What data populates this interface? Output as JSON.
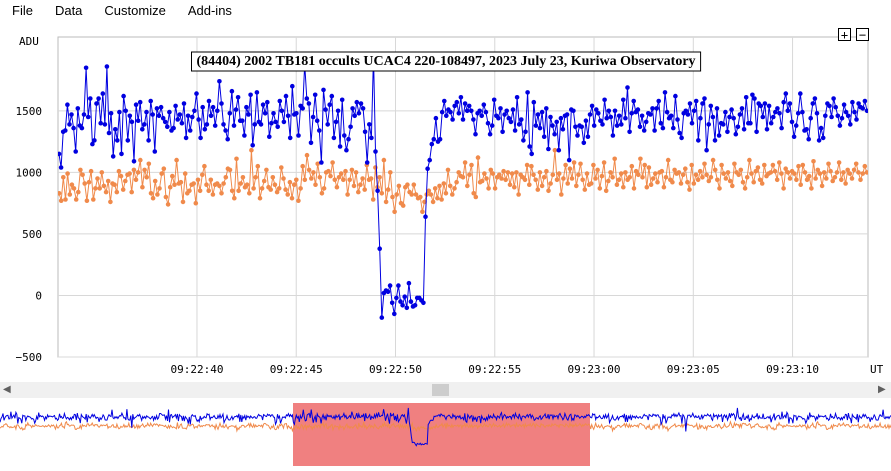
{
  "menu": {
    "items": [
      {
        "label": "File"
      },
      {
        "label": "Data"
      },
      {
        "label": "Customize"
      },
      {
        "label": "Add-ins"
      }
    ]
  },
  "zoom": {
    "in_label": "+",
    "out_label": "−"
  },
  "chart_data": {
    "type": "line",
    "title": "(84404) 2002 TB181 occults UCAC4 220-108497, 2023 July 23, Kuriwa Observatory",
    "ylabel": "ADU",
    "xlabel": "UT",
    "ylim": [
      -500,
      2100
    ],
    "yticks": [
      -500,
      0,
      500,
      1000,
      1500
    ],
    "xlim": [
      0,
      40.8
    ],
    "xticks": [
      {
        "x": 7.0,
        "label": "09:22:40"
      },
      {
        "x": 12.0,
        "label": "09:22:45"
      },
      {
        "x": 17.0,
        "label": "09:22:50"
      },
      {
        "x": 22.0,
        "label": "09:22:55"
      },
      {
        "x": 27.0,
        "label": "09:23:00"
      },
      {
        "x": 32.0,
        "label": "09:23:05"
      },
      {
        "x": 37.0,
        "label": "09:23:10"
      }
    ],
    "grid": true,
    "series": [
      {
        "name": "",
        "color": "#0000e0",
        "values": [
          1150,
          1040,
          1330,
          1340,
          1550,
          1390,
          1470,
          1360,
          1170,
          1520,
          1380,
          1360,
          1470,
          1850,
          1450,
          1600,
          1230,
          1260,
          1560,
          1600,
          1400,
          1640,
          1390,
          1860,
          1320,
          1480,
          1130,
          1350,
          1260,
          1490,
          1150,
          1620,
          1500,
          1260,
          1460,
          1410,
          1090,
          1550,
          1420,
          1570,
          1350,
          1390,
          1490,
          1260,
          1580,
          1470,
          1170,
          1520,
          1460,
          1530,
          1440,
          1410,
          1370,
          1490,
          1340,
          1360,
          1540,
          1430,
          1470,
          1400,
          1560,
          1280,
          1460,
          1340,
          1450,
          1500,
          1640,
          1430,
          1280,
          1530,
          1350,
          1390,
          1580,
          1460,
          1530,
          1380,
          1500,
          1740,
          1560,
          1390,
          1340,
          1270,
          1480,
          1660,
          1380,
          1510,
          1610,
          1420,
          1420,
          1300,
          1530,
          1470,
          1630,
          1220,
          1390,
          1650,
          1410,
          1390,
          1550,
          1480,
          1570,
          1290,
          1400,
          1480,
          1410,
          1370,
          1580,
          1500,
          1410,
          1620,
          1460,
          1280,
          1700,
          1470,
          1480,
          1300,
          1540,
          1520,
          1880,
          1600,
          1560,
          1240,
          1450,
          1630,
          1420,
          1340,
          1080,
          1670,
          1510,
          1390,
          1550,
          1620,
          1280,
          1410,
          1500,
          1210,
          1590,
          1300,
          1180,
          1270,
          1370,
          1520,
          1460,
          1570,
          1480,
          1560,
          1520,
          1330,
          1080,
          1390,
          1280,
          1950,
          1170,
          850,
          380,
          -180,
          20,
          40,
          30,
          80,
          -60,
          -150,
          -20,
          80,
          -50,
          -80,
          -10,
          -100,
          100,
          -50,
          -90,
          -80,
          -20,
          -20,
          -40,
          -60,
          640,
          1030,
          1100,
          1230,
          1270,
          1440,
          1250,
          1270,
          1490,
          1580,
          1460,
          1510,
          1490,
          1430,
          1540,
          1570,
          1480,
          1610,
          1430,
          1560,
          1500,
          1540,
          1500,
          1430,
          1310,
          1480,
          1500,
          1460,
          1550,
          1490,
          1400,
          1310,
          1380,
          1590,
          1460,
          1440,
          1520,
          1330,
          1470,
          1500,
          1440,
          1410,
          1510,
          1340,
          1610,
          1390,
          1430,
          1260,
          1330,
          1650,
          1210,
          1150,
          1570,
          1380,
          1470,
          1360,
          1490,
          1290,
          1520,
          1190,
          1450,
          1380,
          1310,
          1410,
          1180,
          1440,
          1350,
          1460,
          1470,
          1100,
          1510,
          1500,
          1370,
          1300,
          1380,
          1370,
          1240,
          1420,
          1290,
          1470,
          1540,
          1380,
          1510,
          1480,
          1420,
          1390,
          1590,
          1440,
          1500,
          1450,
          1300,
          1500,
          1380,
          1460,
          1390,
          1590,
          1440,
          1690,
          1330,
          1480,
          1580,
          1490,
          1510,
          1370,
          1460,
          1340,
          1410,
          1480,
          1470,
          1520,
          1340,
          1520,
          1580,
          1400,
          1360,
          1650,
          1490,
          1440,
          1460,
          1360,
          1620,
          1430,
          1320,
          1280,
          1480,
          1500,
          1470,
          1560,
          1400,
          1500,
          1580,
          1260,
          1440,
          1560,
          1600,
          1180,
          1390,
          1540,
          1450,
          1260,
          1520,
          1300,
          1400,
          1390,
          1490,
          1330,
          1450,
          1510,
          1440,
          1310,
          1370,
          1470,
          1520,
          1350,
          1610,
          1400,
          1400,
          1630,
          1600,
          1330,
          1560,
          1540,
          1450,
          1560,
          1350,
          1540,
          1400,
          1450,
          1490,
          1520,
          1480,
          1360,
          1570,
          1640,
          1500,
          1560,
          1410,
          1290,
          1380,
          1480,
          1640,
          1490,
          1340,
          1350,
          1270,
          1440,
          1560,
          1600,
          1480,
          1260,
          1360,
          1280,
          1460,
          1560,
          1540,
          1450,
          1600,
          1530,
          1460,
          1380,
          1440,
          1550,
          1490,
          1460,
          1390,
          1570,
          1490,
          1430,
          1560,
          1530,
          1520,
          1580,
          1500
        ]
      },
      {
        "name": "",
        "color": "#f08a4b",
        "values": [
          830,
          770,
          960,
          780,
          990,
          820,
          900,
          870,
          780,
          840,
          1020,
          980,
          910,
          770,
          920,
          1010,
          780,
          870,
          950,
          870,
          1000,
          890,
          840,
          930,
          760,
          910,
          900,
          840,
          1010,
          970,
          860,
          930,
          980,
          990,
          840,
          1020,
          940,
          1000,
          1100,
          880,
          1020,
          960,
          1070,
          830,
          790,
          930,
          820,
          870,
          990,
          1030,
          800,
          740,
          880,
          970,
          900,
          1100,
          910,
          920,
          760,
          990,
          830,
          850,
          900,
          910,
          750,
          940,
          850,
          980,
          1050,
          900,
          850,
          940,
          820,
          900,
          910,
          890,
          830,
          910,
          960,
          1030,
          1020,
          850,
          790,
          1110,
          850,
          910,
          960,
          880,
          900,
          830,
          1180,
          870,
          960,
          1050,
          790,
          870,
          930,
          1020,
          880,
          860,
          960,
          900,
          840,
          870,
          1040,
          950,
          860,
          820,
          920,
          790,
          900,
          940,
          770,
          870,
          1050,
          940,
          1140,
          1020,
          950,
          1000,
          900,
          1070,
          960,
          830,
          870,
          1000,
          1010,
          970,
          1080,
          940,
          880,
          960,
          990,
          940,
          1010,
          820,
          940,
          1020,
          890,
          1000,
          840,
          900,
          950,
          860,
          1060,
          940,
          950,
          780,
          1040,
          880,
          960,
          830,
          1100,
          760,
          860,
          1000,
          800,
          680,
          820,
          890,
          750,
          730,
          880,
          900,
          840,
          820,
          900,
          820,
          790,
          800,
          680,
          760,
          820,
          850,
          820,
          760,
          870,
          790,
          890,
          780,
          910,
          830,
          1020,
          890,
          820,
          870,
          920,
          1000,
          970,
          960,
          1080,
          890,
          980,
          1060,
          830,
          800,
          1120,
          920,
          930,
          990,
          950,
          870,
          1020,
          990,
          870,
          960,
          980,
          950,
          1010,
          940,
          1000,
          900,
          990,
          880,
          1000,
          820,
          980,
          960,
          940,
          1060,
          900,
          1050,
          980,
          940,
          860,
          1000,
          890,
          960,
          1010,
          850,
          910,
          980,
          1180,
          940,
          990,
          820,
          950,
          1060,
          910,
          1030,
          950,
          1080,
          890,
          980,
          1070,
          940,
          860,
          990,
          900,
          910,
          1060,
          950,
          1020,
          870,
          970,
          1080,
          850,
          930,
          1000,
          960,
          1110,
          900,
          940,
          990,
          880,
          1000,
          940,
          960,
          1050,
          870,
          1010,
          980,
          1110,
          960,
          1060,
          880,
          1040,
          900,
          950,
          990,
          920,
          1000,
          1010,
          880,
          960,
          1100,
          940,
          920,
          1020,
          990,
          1000,
          910,
          980,
          1030,
          920,
          860,
          1060,
          910,
          980,
          940,
          1010,
          960,
          1070,
          980,
          930,
          960,
          1100,
          1020,
          940,
          870,
          1060,
          990,
          950,
          1000,
          930,
          890,
          1070,
          1000,
          980,
          1020,
          920,
          870,
          960,
          1100,
          990,
          920,
          1010,
          1040,
          940,
          910,
          1060,
          970,
          990,
          1000,
          1060,
          1010,
          940,
          1080,
          990,
          870,
          1030,
          1000,
          950,
          1010,
          990,
          940,
          1050,
          900,
          1060,
          1000,
          940,
          970,
          870,
          1090,
          950,
          1020,
          990,
          890,
          1000,
          950,
          1070,
          1010,
          930,
          960,
          1000,
          1080,
          940,
          1000,
          910,
          1020,
          990,
          950,
          1020,
          1070,
          1000,
          940,
          990,
          1050,
          1000
        ]
      }
    ]
  }
}
